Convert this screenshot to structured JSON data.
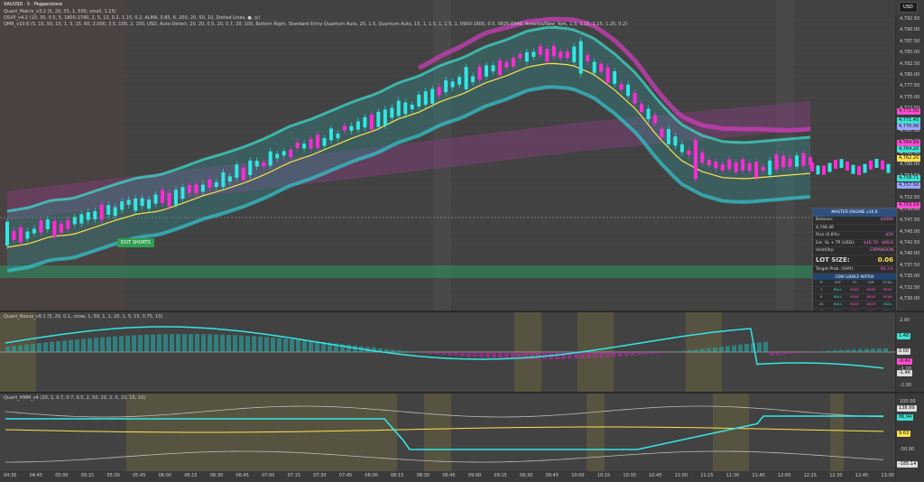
{
  "legend": {
    "symbol": "XAUUSD · 5 · Pepperstone",
    "line1": "Quant_Matrix_v3.2 (5, 20, 35, 1, 500, small, 1.15)",
    "line2": "QSVP_v4.2 (10, 30, 0.5, 5, 1800-1740, 2, 5, 13, 0.2, 1.15, 0.2, ALMA, 0.85, 6, 200, 20, 50, 10, Dotted Lines, ●, ◎)",
    "line3": "QMR_v10.6 (5, 10, 50, 10, 1, 5, 15, 60, 2,000, 3.5, 100, 2, 100, USD, Auto-Detect, 20, 20, 0.5, 20, 0.7, 20, 100, Bottom Right, Standard Entry Quantum Auto, 25, 1.5, Quantum Auto, 15, 1, 1.5, 1, 1.5, 1, 0900-1600, 0.5, 0825-0940, America/New_York, 1.5, 1.15, 1.15, 1.25, 0.2)"
  },
  "currency": "USD",
  "price_scale": [
    "4,792.50",
    "4,790.00",
    "4,787.50",
    "4,785.00",
    "4,782.50",
    "4,780.00",
    "4,777.50",
    "4,775.00",
    "4,772.50",
    "4,770.00",
    "4,767.50",
    "4,765.00",
    "4,762.50",
    "4,760.00",
    "4,757.50",
    "4,755.00",
    "4,752.50",
    "4,750.00",
    "4,747.50",
    "4,745.00",
    "4,742.50",
    "4,740.00",
    "4,737.50",
    "4,735.00",
    "4,732.50",
    "4,730.00"
  ],
  "price_tags": [
    {
      "label": "4,771.00",
      "color": "#ff4dd2"
    },
    {
      "label": "4,771.45",
      "color": "#3fe0d0"
    },
    {
      "label": "4,770.00",
      "color": "#9aa7ff"
    },
    {
      "label": "4,764.89",
      "color": "#ff4dd2"
    },
    {
      "label": "4,764.20",
      "color": "#3fe0d0"
    },
    {
      "label": "4,762.20",
      "color": "#ffe14d"
    },
    {
      "label": "4,758.71",
      "color": "#3fe0d0"
    },
    {
      "label": "4,757.50",
      "color": "#9aa7ff"
    },
    {
      "label": "4,753.19",
      "color": "#ff4dd2"
    }
  ],
  "exit_label": "EXIT SHORTS",
  "panel": {
    "title": "MASTER ENGINE v10.6",
    "rows": [
      {
        "k": "Balance:",
        "v": "$2000"
      },
      {
        "k": "4,748.46",
        "v": ""
      },
      {
        "k": "Risk (0.8%):",
        "v": "$16"
      },
      {
        "k": "Est. SL + TP (USD):",
        "v": "$16.70 · $66.0"
      },
      {
        "k": "Volatility:",
        "v": "EXPANSION"
      }
    ],
    "lot_label": "LOT SIZE:",
    "lot_value": "0.06",
    "target_label": "Target Prob. (5HR):",
    "target_value": "86.1%",
    "matrix_title": "CONFLUENCE MATRIX",
    "matrix_head": [
      "TF",
      "MTF",
      "ST",
      "CMF",
      "TOTAL"
    ],
    "matrix_rows": [
      [
        "1",
        "BULL",
        "BEAR",
        "BEAR",
        "BEAR"
      ],
      [
        "5",
        "BULL",
        "BEAR",
        "BEAR",
        "BEAR"
      ],
      [
        "15",
        "BULL",
        "BEAR",
        "BEAR",
        "BULL"
      ],
      [
        "60",
        "BULL",
        "BEAR",
        "BEAR",
        "BULL"
      ]
    ]
  },
  "osc1": {
    "legend": "Quant_Nexus_v8.1 (5, 20, 0.1, close, 1, 50, 1, 1, 20, 1, 5, 15, 0.75, 10)",
    "scale": [
      "2.00",
      "1.00",
      "0.00",
      "-1.00",
      "-2.00"
    ],
    "tags": [
      {
        "label": "1.48",
        "color": "#3fe0d0"
      },
      {
        "label": "0.00",
        "color": "#dddddd"
      },
      {
        "label": "-0.42",
        "color": "#ff4dd2"
      },
      {
        "label": "-1.46",
        "color": "#dddddd"
      }
    ]
  },
  "osc2": {
    "legend": "Quant_HMM_v4 (20, 2, 0.7, 0.7, 0.5, 2, 50, 20, 2, 5, 15, 15, 10)",
    "scale": [
      "100.00",
      "50.00",
      "0.00",
      "-50.00",
      "-100.00"
    ],
    "tags": [
      {
        "label": "138.99",
        "color": "#dddddd"
      },
      {
        "label": "86.94",
        "color": "#3fe0d0"
      },
      {
        "label": "9.63",
        "color": "#ffe14d"
      },
      {
        "label": "-185.14",
        "color": "#dddddd"
      }
    ]
  },
  "time_axis": [
    "04:30",
    "04:45",
    "05:00",
    "05:15",
    "05:30",
    "05:45",
    "06:00",
    "06:15",
    "06:30",
    "06:45",
    "07:00",
    "07:15",
    "07:30",
    "07:45",
    "08:00",
    "08:15",
    "08:30",
    "08:45",
    "09:00",
    "09:15",
    "09:30",
    "09:45",
    "10:00",
    "10:15",
    "10:30",
    "10:45",
    "11:00",
    "11:15",
    "11:30",
    "11:45",
    "12:00",
    "12:15",
    "12:30",
    "12:45",
    "13:00"
  ],
  "colors": {
    "bull": "#33e6e6",
    "bear": "#ff2bd6",
    "mid": "#ffe14d",
    "zone": "#2f8f5f"
  }
}
